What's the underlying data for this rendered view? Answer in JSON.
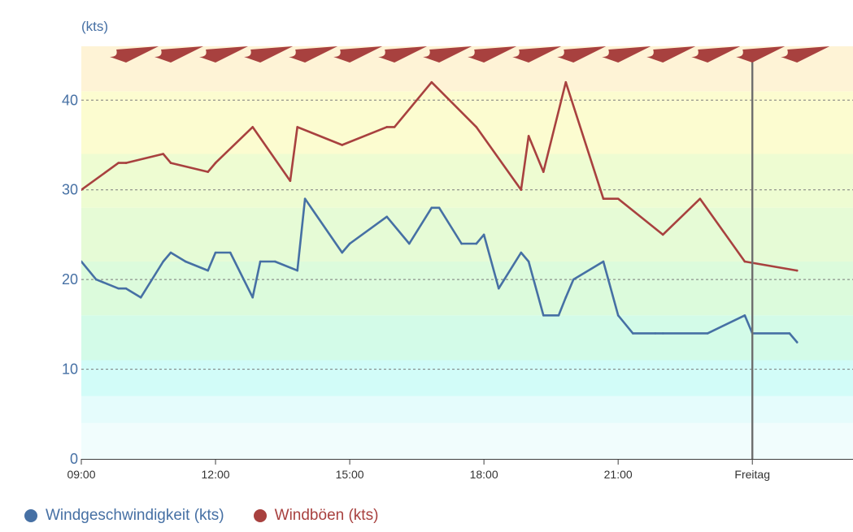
{
  "chart_data": {
    "type": "line",
    "unit_label": "(kts)",
    "ylim": [
      0,
      46
    ],
    "yticks": [
      0,
      10,
      20,
      30,
      40
    ],
    "grid": true,
    "xlim": [
      9.0,
      26.25
    ],
    "xticks": [
      {
        "x": 9,
        "label": "09:00"
      },
      {
        "x": 12,
        "label": "12:00"
      },
      {
        "x": 15,
        "label": "15:00"
      },
      {
        "x": 18,
        "label": "18:00"
      },
      {
        "x": 21,
        "label": "21:00"
      },
      {
        "x": 24,
        "label": "Freitag"
      }
    ],
    "marker_x": 24,
    "colors": {
      "speed": "#4670a4",
      "gust": "#a8413f",
      "arrow": "#a8413f"
    },
    "bands": [
      {
        "from": 0,
        "to": 4,
        "color": "#f1fdfd"
      },
      {
        "from": 4,
        "to": 7,
        "color": "#e5fcfc"
      },
      {
        "from": 7,
        "to": 11,
        "color": "#d2fcf8"
      },
      {
        "from": 11,
        "to": 16,
        "color": "#d3fbe8"
      },
      {
        "from": 16,
        "to": 22,
        "color": "#dcfbdc"
      },
      {
        "from": 22,
        "to": 28,
        "color": "#e6fbd6"
      },
      {
        "from": 28,
        "to": 34,
        "color": "#eefcd2"
      },
      {
        "from": 34,
        "to": 41,
        "color": "#fcfcd0"
      },
      {
        "from": 41,
        "to": 46,
        "color": "#fef3d6"
      }
    ],
    "series": [
      {
        "name": "Windgeschwindigkeit (kts)",
        "key": "speed",
        "x": [
          9.0,
          9.33,
          9.83,
          10.0,
          10.33,
          10.83,
          11.0,
          11.33,
          11.83,
          12.0,
          12.33,
          12.83,
          13.0,
          13.33,
          13.83,
          14.0,
          14.83,
          15.0,
          15.83,
          16.33,
          16.83,
          17.0,
          17.5,
          17.83,
          18.0,
          18.33,
          18.83,
          19.0,
          19.33,
          19.67,
          19.83,
          20.0,
          20.67,
          21.0,
          21.33,
          21.83,
          22.0,
          23.0,
          23.83,
          24.0,
          24.83,
          25.0
        ],
        "values": [
          22,
          20,
          19,
          19,
          18,
          22,
          23,
          22,
          21,
          23,
          23,
          18,
          22,
          22,
          21,
          29,
          23,
          24,
          27,
          24,
          28,
          28,
          24,
          24,
          25,
          19,
          23,
          22,
          16,
          16,
          18,
          20,
          22,
          16,
          14,
          14,
          14,
          14,
          16,
          14,
          14,
          13
        ]
      },
      {
        "name": "Windböen (kts)",
        "key": "gust",
        "x": [
          9.0,
          9.83,
          10.0,
          10.83,
          11.0,
          11.83,
          12.0,
          12.83,
          13.67,
          13.83,
          14.83,
          15.83,
          16.0,
          16.83,
          17.83,
          18.83,
          19.0,
          19.33,
          19.83,
          20.67,
          21.0,
          22.0,
          22.83,
          23.83,
          25.0
        ],
        "values": [
          30,
          33,
          33,
          34,
          33,
          32,
          33,
          37,
          31,
          37,
          35,
          37,
          37,
          42,
          37,
          30,
          36,
          32,
          42,
          29,
          29,
          25,
          29,
          22,
          21
        ]
      }
    ],
    "direction_arrows_x": [
      10.0,
      11.0,
      12.0,
      13.0,
      14.0,
      15.0,
      16.0,
      17.0,
      18.0,
      19.0,
      20.0,
      21.0,
      22.0,
      23.0,
      24.0,
      25.0
    ]
  }
}
